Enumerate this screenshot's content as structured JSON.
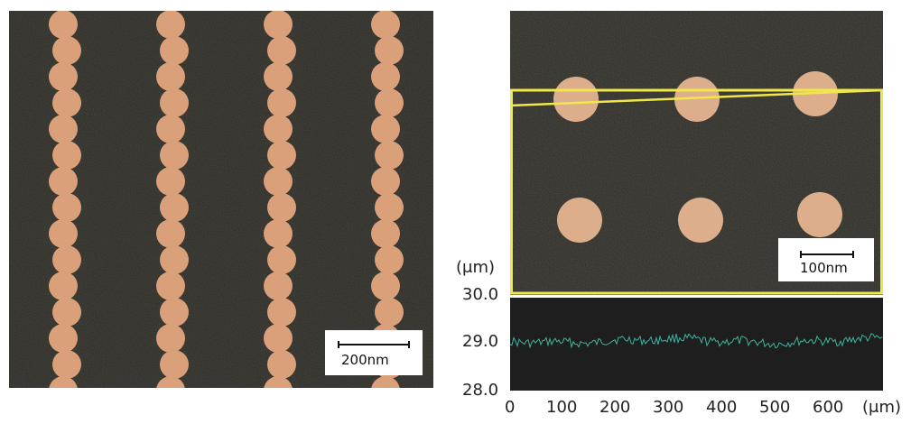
{
  "left_panel": {
    "scale_label": "200nm",
    "background_color": "#2b2a24",
    "dot_color": "#d9a07a"
  },
  "right_panel": {
    "scale_label": "100nm",
    "background_color": "#2c2b25",
    "dot_color": "#dcae8c",
    "roi_color": "#f0e74a"
  },
  "profile": {
    "y_unit": "(μm)",
    "y_ticks": [
      "30.0",
      "29.0",
      "28.0"
    ],
    "x_ticks": [
      "0",
      "100",
      "200",
      "300",
      "400",
      "500",
      "600"
    ],
    "x_unit": "(μm)",
    "trace_color": "#3fb3a0",
    "background_color": "#1e1e1e"
  }
}
